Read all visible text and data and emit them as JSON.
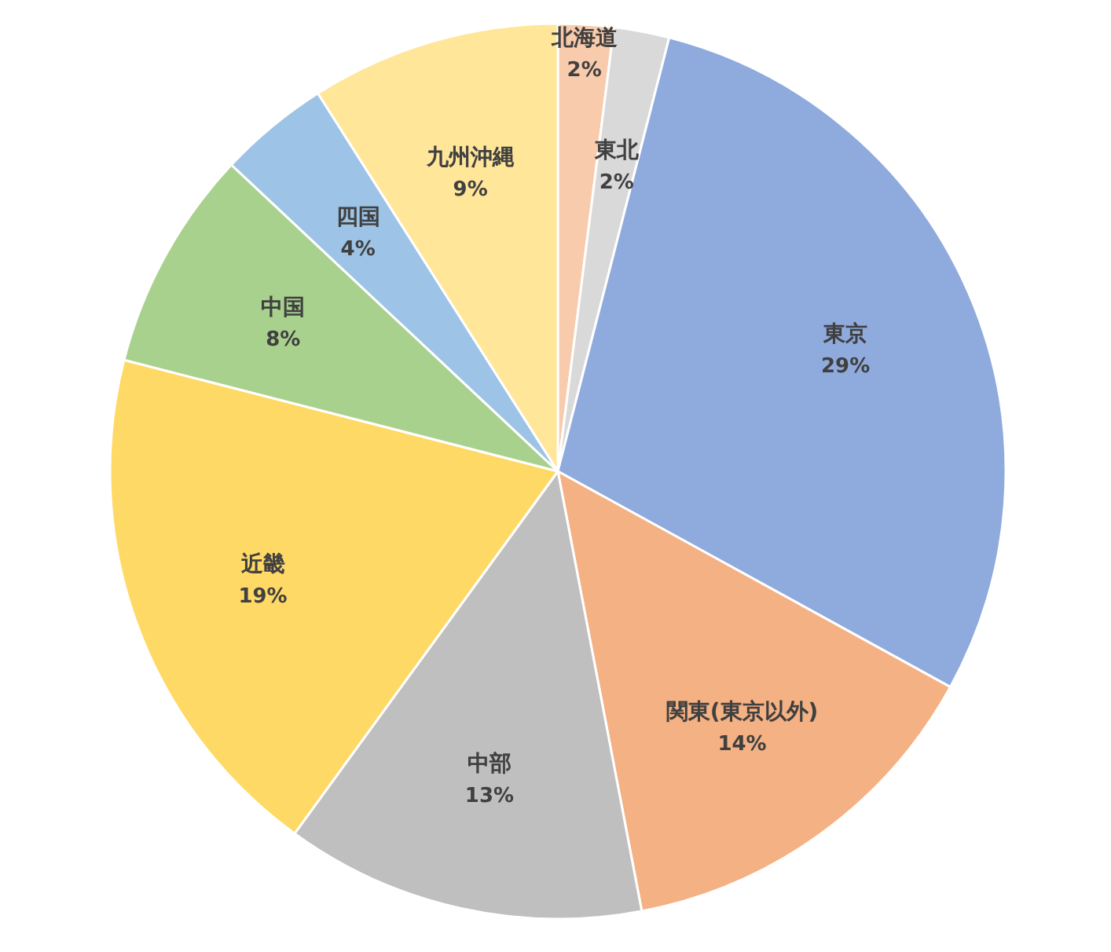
{
  "chart_data": {
    "type": "pie",
    "categories": [
      "北海道",
      "東北",
      "東京",
      "関東(東京以外)",
      "中部",
      "近畿",
      "中国",
      "四国",
      "九州沖縄"
    ],
    "values": [
      2,
      2,
      29,
      14,
      13,
      19,
      8,
      4,
      9
    ],
    "colors": [
      "#f8cbad",
      "#d9d9d9",
      "#8faadc",
      "#f4b183",
      "#bfbfbf",
      "#ffd966",
      "#a9d18e",
      "#9dc3e6",
      "#ffe699"
    ],
    "value_labels": [
      "2%",
      "2%",
      "29%",
      "14%",
      "13%",
      "19%",
      "8%",
      "4%",
      "9%"
    ]
  }
}
